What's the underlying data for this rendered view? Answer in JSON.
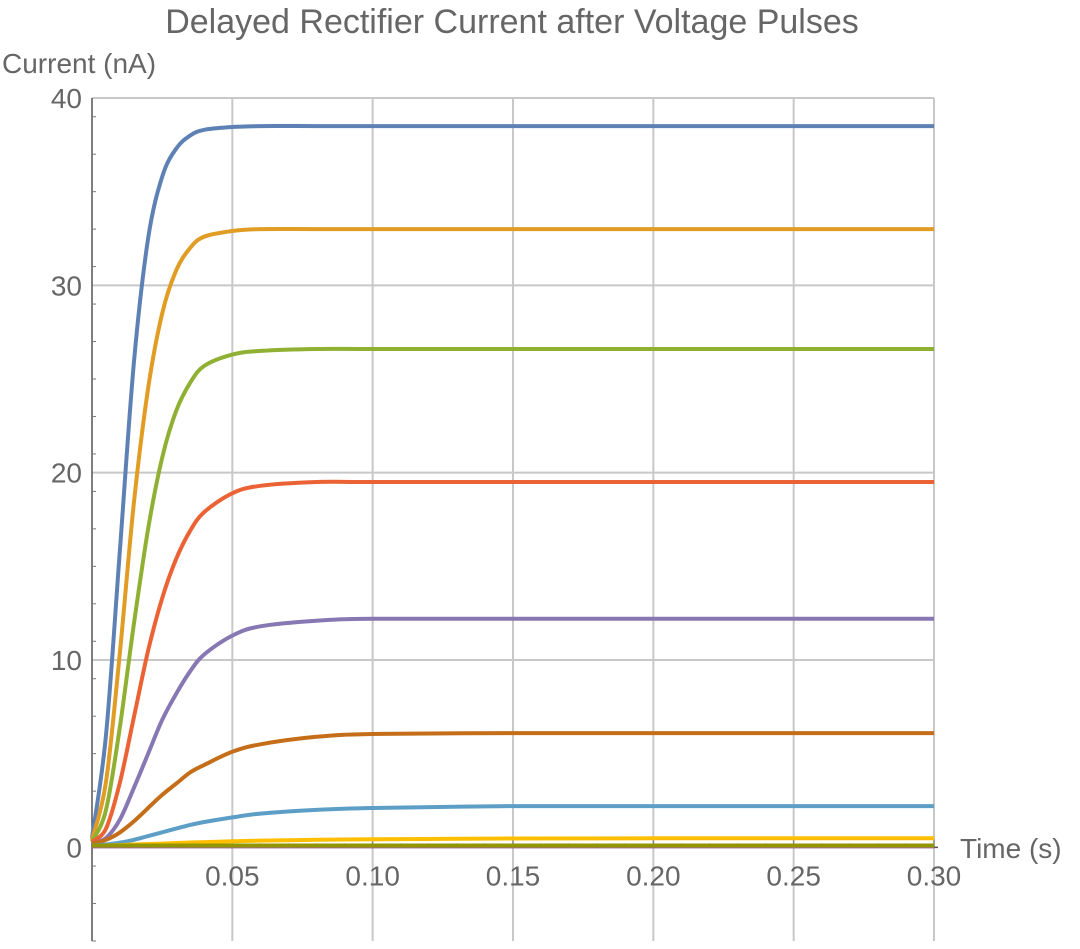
{
  "chart_data": {
    "type": "line",
    "title": "Delayed Rectifier Current after Voltage Pulses",
    "xlabel": "Time (s)",
    "ylabel": "Current (nA)",
    "xlim": [
      0,
      0.3
    ],
    "ylim": [
      -5,
      40
    ],
    "grid": true,
    "x_ticks": [
      0.05,
      0.1,
      0.15,
      0.2,
      0.25,
      0.3
    ],
    "x_tick_labels": [
      "0.05",
      "0.10",
      "0.15",
      "0.20",
      "0.25",
      "0.30"
    ],
    "y_ticks": [
      0,
      10,
      20,
      30,
      40
    ],
    "y_tick_labels": [
      "0",
      "10",
      "20",
      "30",
      "40"
    ],
    "x": [
      0,
      0.005,
      0.01,
      0.015,
      0.02,
      0.025,
      0.03,
      0.035,
      0.04,
      0.05,
      0.06,
      0.08,
      0.1,
      0.15,
      0.2,
      0.25,
      0.3
    ],
    "series": [
      {
        "color": "#5E81B5",
        "values": [
          0.5,
          6.0,
          16.0,
          26.0,
          32.5,
          35.8,
          37.3,
          38.0,
          38.3,
          38.45,
          38.5,
          38.5,
          38.5,
          38.5,
          38.5,
          38.5,
          38.5
        ]
      },
      {
        "color": "#E19C24",
        "values": [
          0.4,
          3.5,
          10.5,
          18.5,
          24.5,
          28.5,
          30.8,
          32.0,
          32.6,
          32.9,
          33.0,
          33.0,
          33.0,
          33.0,
          33.0,
          33.0,
          33.0
        ]
      },
      {
        "color": "#8FB032",
        "values": [
          0.3,
          2.0,
          6.5,
          12.0,
          17.0,
          20.8,
          23.3,
          24.8,
          25.7,
          26.3,
          26.5,
          26.6,
          26.6,
          26.6,
          26.6,
          26.6,
          26.6
        ]
      },
      {
        "color": "#EB6235",
        "values": [
          0.3,
          1.0,
          3.5,
          7.0,
          10.5,
          13.3,
          15.4,
          16.9,
          17.9,
          18.9,
          19.3,
          19.5,
          19.5,
          19.5,
          19.5,
          19.5,
          19.5
        ]
      },
      {
        "color": "#8778B3",
        "values": [
          0.2,
          0.5,
          1.5,
          3.2,
          5.0,
          6.8,
          8.2,
          9.4,
          10.3,
          11.3,
          11.8,
          12.1,
          12.2,
          12.2,
          12.2,
          12.2,
          12.2
        ]
      },
      {
        "color": "#C56E1A",
        "values": [
          0.2,
          0.4,
          0.8,
          1.4,
          2.1,
          2.8,
          3.4,
          4.0,
          4.4,
          5.1,
          5.5,
          5.9,
          6.05,
          6.1,
          6.1,
          6.1,
          6.1
        ]
      },
      {
        "color": "#5D9EC7",
        "values": [
          0.1,
          0.15,
          0.25,
          0.4,
          0.6,
          0.8,
          1.0,
          1.2,
          1.35,
          1.6,
          1.8,
          2.0,
          2.1,
          2.2,
          2.2,
          2.2,
          2.2
        ]
      },
      {
        "color": "#FFBF00",
        "values": [
          0.1,
          0.1,
          0.12,
          0.15,
          0.18,
          0.2,
          0.23,
          0.26,
          0.28,
          0.32,
          0.36,
          0.4,
          0.43,
          0.47,
          0.48,
          0.48,
          0.48
        ]
      },
      {
        "color": "#A5609D",
        "values": [
          0.05,
          0.05,
          0.05,
          0.05,
          0.05,
          0.05,
          0.05,
          0.05,
          0.05,
          0.05,
          0.05,
          0.05,
          0.05,
          0.05,
          0.05,
          0.05,
          0.05
        ]
      },
      {
        "color": "#929600",
        "values": [
          0.1,
          0.1,
          0.1,
          0.1,
          0.1,
          0.1,
          0.1,
          0.1,
          0.1,
          0.1,
          0.1,
          0.1,
          0.1,
          0.1,
          0.1,
          0.1,
          0.1
        ]
      }
    ]
  }
}
